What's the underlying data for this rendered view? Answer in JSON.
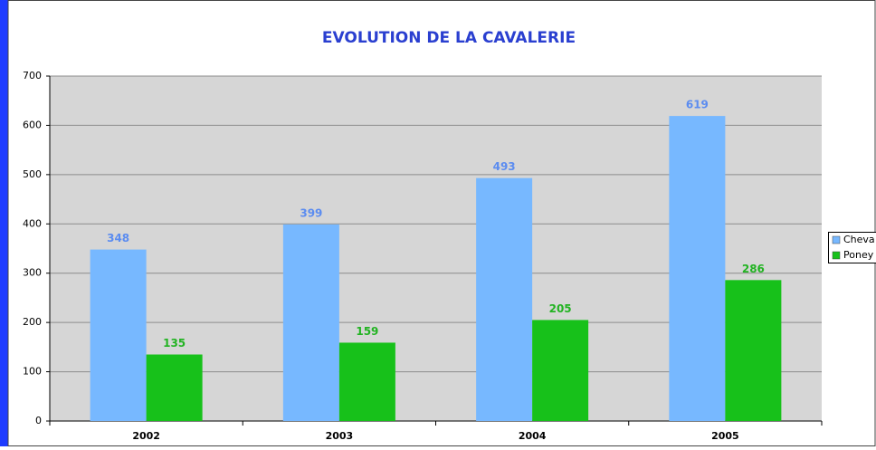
{
  "chart_data": {
    "type": "bar",
    "title": "EVOLUTION DE LA CAVALERIE",
    "categories": [
      "2002",
      "2003",
      "2004",
      "2005"
    ],
    "series": [
      {
        "name": "Cheva",
        "color": "#77b8ff",
        "label_color": "#5b8cf0",
        "values": [
          348,
          399,
          493,
          619
        ]
      },
      {
        "name": "Poney",
        "color": "#17c11a",
        "label_color": "#22b322",
        "values": [
          135,
          159,
          205,
          286
        ]
      }
    ],
    "ylim": [
      0,
      700
    ],
    "yticks": [
      0,
      100,
      200,
      300,
      400,
      500,
      600,
      700
    ],
    "grid": true
  }
}
